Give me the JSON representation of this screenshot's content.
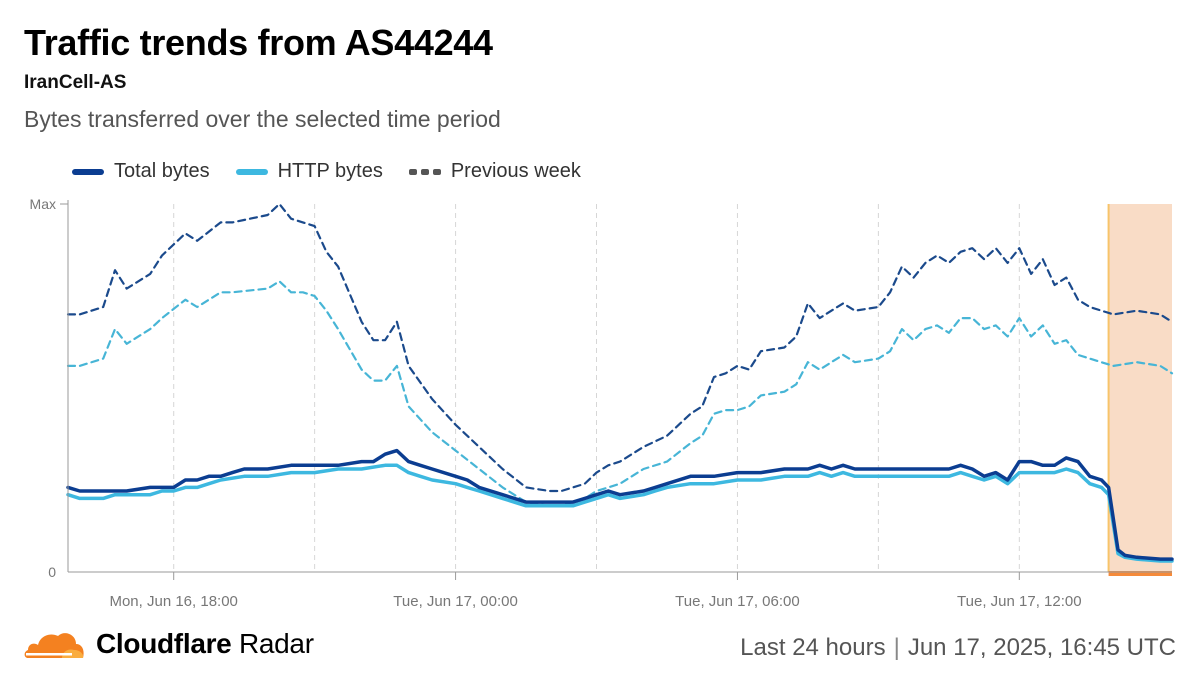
{
  "header": {
    "title": "Traffic trends from AS44244",
    "subtitle": "IranCell-AS",
    "description": "Bytes transferred over the selected time period"
  },
  "legend": {
    "total": "Total bytes",
    "http": "HTTP bytes",
    "previous": "Previous week"
  },
  "colors": {
    "total": "#0b3d91",
    "http": "#3db8e0",
    "previous_total": "#1b4a8c",
    "previous_http": "#47b5d6",
    "highlight_fill": "#f9dcc6",
    "highlight_border": "#f7c46a",
    "highlight_bar": "#f58a3a",
    "grid": "#d6d6d6"
  },
  "footer": {
    "brand_bold": "Cloudflare",
    "brand_regular": "Radar",
    "period": "Last 24 hours",
    "timestamp": "Jun 17, 2025, 16:45 UTC"
  },
  "chart_data": {
    "type": "line",
    "y_unit": "fraction of max",
    "ylim": [
      0,
      1
    ],
    "y_tick_labels": [
      "0",
      "Max"
    ],
    "x_range_hours": [
      -2.25,
      21.25
    ],
    "x_ticks": [
      {
        "hour": 0,
        "label": "Mon, Jun 16, 18:00"
      },
      {
        "hour": 6,
        "label": "Tue, Jun 17, 00:00"
      },
      {
        "hour": 12,
        "label": "Tue, Jun 17, 06:00"
      },
      {
        "hour": 18,
        "label": "Tue, Jun 17, 12:00"
      }
    ],
    "highlight_range_hours": [
      19.9,
      21.25
    ],
    "grid": true,
    "legend_position": "top-left",
    "series": [
      {
        "key": "previous_total",
        "values": [
          [
            -2.25,
            0.7
          ],
          [
            -2,
            0.7
          ],
          [
            -1.5,
            0.72
          ],
          [
            -1.25,
            0.82
          ],
          [
            -1,
            0.77
          ],
          [
            -0.5,
            0.81
          ],
          [
            -0.25,
            0.86
          ],
          [
            0.25,
            0.92
          ],
          [
            0.5,
            0.9
          ],
          [
            1,
            0.95
          ],
          [
            1.25,
            0.95
          ],
          [
            2,
            0.97
          ],
          [
            2.25,
            1.0
          ],
          [
            2.5,
            0.96
          ],
          [
            2.75,
            0.95
          ],
          [
            3,
            0.94
          ],
          [
            3.25,
            0.87
          ],
          [
            3.5,
            0.83
          ],
          [
            4,
            0.68
          ],
          [
            4.25,
            0.63
          ],
          [
            4.5,
            0.63
          ],
          [
            4.75,
            0.68
          ],
          [
            5,
            0.56
          ],
          [
            5.5,
            0.47
          ],
          [
            6,
            0.4
          ],
          [
            6.5,
            0.34
          ],
          [
            7,
            0.28
          ],
          [
            7.5,
            0.23
          ],
          [
            8,
            0.22
          ],
          [
            8.25,
            0.22
          ],
          [
            8.5,
            0.23
          ],
          [
            8.75,
            0.24
          ],
          [
            9,
            0.27
          ],
          [
            9.25,
            0.29
          ],
          [
            9.5,
            0.3
          ],
          [
            10,
            0.34
          ],
          [
            10.5,
            0.37
          ],
          [
            11,
            0.43
          ],
          [
            11.25,
            0.45
          ],
          [
            11.5,
            0.53
          ],
          [
            11.75,
            0.54
          ],
          [
            12,
            0.56
          ],
          [
            12.25,
            0.55
          ],
          [
            12.5,
            0.6
          ],
          [
            13,
            0.61
          ],
          [
            13.25,
            0.64
          ],
          [
            13.5,
            0.73
          ],
          [
            13.75,
            0.69
          ],
          [
            14,
            0.71
          ],
          [
            14.25,
            0.73
          ],
          [
            14.5,
            0.71
          ],
          [
            15,
            0.72
          ],
          [
            15.25,
            0.76
          ],
          [
            15.5,
            0.83
          ],
          [
            15.75,
            0.8
          ],
          [
            16,
            0.84
          ],
          [
            16.25,
            0.86
          ],
          [
            16.5,
            0.84
          ],
          [
            16.75,
            0.87
          ],
          [
            17,
            0.88
          ],
          [
            17.25,
            0.85
          ],
          [
            17.5,
            0.88
          ],
          [
            17.75,
            0.84
          ],
          [
            18,
            0.88
          ],
          [
            18.25,
            0.81
          ],
          [
            18.5,
            0.85
          ],
          [
            18.75,
            0.78
          ],
          [
            19,
            0.8
          ],
          [
            19.25,
            0.74
          ],
          [
            19.5,
            0.72
          ],
          [
            20,
            0.7
          ],
          [
            20.5,
            0.71
          ],
          [
            21,
            0.7
          ],
          [
            21.25,
            0.68
          ]
        ]
      },
      {
        "key": "previous_http",
        "values": [
          [
            -2.25,
            0.56
          ],
          [
            -2,
            0.56
          ],
          [
            -1.5,
            0.58
          ],
          [
            -1.25,
            0.66
          ],
          [
            -1,
            0.62
          ],
          [
            -0.5,
            0.66
          ],
          [
            -0.25,
            0.69
          ],
          [
            0.25,
            0.74
          ],
          [
            0.5,
            0.72
          ],
          [
            1,
            0.76
          ],
          [
            1.25,
            0.76
          ],
          [
            2,
            0.77
          ],
          [
            2.25,
            0.79
          ],
          [
            2.5,
            0.76
          ],
          [
            2.75,
            0.76
          ],
          [
            3,
            0.75
          ],
          [
            3.25,
            0.71
          ],
          [
            3.5,
            0.66
          ],
          [
            4,
            0.55
          ],
          [
            4.25,
            0.52
          ],
          [
            4.5,
            0.52
          ],
          [
            4.75,
            0.56
          ],
          [
            5,
            0.45
          ],
          [
            5.5,
            0.38
          ],
          [
            6,
            0.33
          ],
          [
            6.5,
            0.28
          ],
          [
            7,
            0.23
          ],
          [
            7.5,
            0.19
          ],
          [
            8,
            0.18
          ],
          [
            8.25,
            0.18
          ],
          [
            8.5,
            0.19
          ],
          [
            8.75,
            0.2
          ],
          [
            9,
            0.22
          ],
          [
            9.25,
            0.23
          ],
          [
            9.5,
            0.24
          ],
          [
            10,
            0.28
          ],
          [
            10.5,
            0.3
          ],
          [
            11,
            0.35
          ],
          [
            11.25,
            0.37
          ],
          [
            11.5,
            0.43
          ],
          [
            11.75,
            0.44
          ],
          [
            12,
            0.44
          ],
          [
            12.25,
            0.45
          ],
          [
            12.5,
            0.48
          ],
          [
            13,
            0.49
          ],
          [
            13.25,
            0.51
          ],
          [
            13.5,
            0.57
          ],
          [
            13.75,
            0.55
          ],
          [
            14,
            0.57
          ],
          [
            14.25,
            0.59
          ],
          [
            14.5,
            0.57
          ],
          [
            15,
            0.58
          ],
          [
            15.25,
            0.6
          ],
          [
            15.5,
            0.66
          ],
          [
            15.75,
            0.63
          ],
          [
            16,
            0.66
          ],
          [
            16.25,
            0.67
          ],
          [
            16.5,
            0.65
          ],
          [
            16.75,
            0.69
          ],
          [
            17,
            0.69
          ],
          [
            17.25,
            0.66
          ],
          [
            17.5,
            0.67
          ],
          [
            17.75,
            0.64
          ],
          [
            18,
            0.69
          ],
          [
            18.25,
            0.64
          ],
          [
            18.5,
            0.67
          ],
          [
            18.75,
            0.62
          ],
          [
            19,
            0.63
          ],
          [
            19.25,
            0.59
          ],
          [
            19.5,
            0.58
          ],
          [
            20,
            0.56
          ],
          [
            20.5,
            0.57
          ],
          [
            21,
            0.56
          ],
          [
            21.25,
            0.54
          ]
        ]
      },
      {
        "key": "http",
        "values": [
          [
            -2.25,
            0.21
          ],
          [
            -2,
            0.2
          ],
          [
            -1.75,
            0.2
          ],
          [
            -1.5,
            0.2
          ],
          [
            -1.25,
            0.21
          ],
          [
            -1,
            0.21
          ],
          [
            -0.5,
            0.21
          ],
          [
            -0.25,
            0.22
          ],
          [
            0,
            0.22
          ],
          [
            0.25,
            0.23
          ],
          [
            0.5,
            0.23
          ],
          [
            0.75,
            0.24
          ],
          [
            1,
            0.25
          ],
          [
            1.5,
            0.26
          ],
          [
            1.75,
            0.26
          ],
          [
            2,
            0.26
          ],
          [
            2.5,
            0.27
          ],
          [
            3,
            0.27
          ],
          [
            3.5,
            0.28
          ],
          [
            4,
            0.28
          ],
          [
            4.5,
            0.29
          ],
          [
            4.75,
            0.29
          ],
          [
            5,
            0.27
          ],
          [
            5.25,
            0.26
          ],
          [
            5.5,
            0.25
          ],
          [
            6,
            0.24
          ],
          [
            6.25,
            0.23
          ],
          [
            6.5,
            0.22
          ],
          [
            7,
            0.2
          ],
          [
            7.5,
            0.18
          ],
          [
            8,
            0.18
          ],
          [
            8.25,
            0.18
          ],
          [
            8.5,
            0.18
          ],
          [
            8.75,
            0.19
          ],
          [
            9,
            0.2
          ],
          [
            9.25,
            0.21
          ],
          [
            9.5,
            0.2
          ],
          [
            10,
            0.21
          ],
          [
            10.25,
            0.22
          ],
          [
            10.5,
            0.23
          ],
          [
            11,
            0.24
          ],
          [
            11.5,
            0.24
          ],
          [
            12,
            0.25
          ],
          [
            12.5,
            0.25
          ],
          [
            13,
            0.26
          ],
          [
            13.5,
            0.26
          ],
          [
            13.75,
            0.27
          ],
          [
            14,
            0.26
          ],
          [
            14.25,
            0.27
          ],
          [
            14.5,
            0.26
          ],
          [
            15,
            0.26
          ],
          [
            15.5,
            0.26
          ],
          [
            16,
            0.26
          ],
          [
            16.25,
            0.26
          ],
          [
            16.5,
            0.26
          ],
          [
            16.75,
            0.27
          ],
          [
            17,
            0.26
          ],
          [
            17.25,
            0.25
          ],
          [
            17.5,
            0.26
          ],
          [
            17.75,
            0.24
          ],
          [
            18,
            0.27
          ],
          [
            18.25,
            0.27
          ],
          [
            18.5,
            0.27
          ],
          [
            18.75,
            0.27
          ],
          [
            19,
            0.28
          ],
          [
            19.25,
            0.27
          ],
          [
            19.5,
            0.24
          ],
          [
            19.75,
            0.23
          ],
          [
            19.9,
            0.21
          ],
          [
            20.1,
            0.05
          ],
          [
            20.25,
            0.04
          ],
          [
            20.5,
            0.035
          ],
          [
            21,
            0.03
          ],
          [
            21.25,
            0.03
          ]
        ]
      },
      {
        "key": "total",
        "values": [
          [
            -2.25,
            0.23
          ],
          [
            -2,
            0.22
          ],
          [
            -1.75,
            0.22
          ],
          [
            -1.5,
            0.22
          ],
          [
            -1.25,
            0.22
          ],
          [
            -1,
            0.22
          ],
          [
            -0.5,
            0.23
          ],
          [
            -0.25,
            0.23
          ],
          [
            0,
            0.23
          ],
          [
            0.25,
            0.25
          ],
          [
            0.5,
            0.25
          ],
          [
            0.75,
            0.26
          ],
          [
            1,
            0.26
          ],
          [
            1.25,
            0.27
          ],
          [
            1.5,
            0.28
          ],
          [
            1.75,
            0.28
          ],
          [
            2,
            0.28
          ],
          [
            2.5,
            0.29
          ],
          [
            3,
            0.29
          ],
          [
            3.5,
            0.29
          ],
          [
            4,
            0.3
          ],
          [
            4.25,
            0.3
          ],
          [
            4.5,
            0.32
          ],
          [
            4.75,
            0.33
          ],
          [
            5,
            0.3
          ],
          [
            5.25,
            0.29
          ],
          [
            5.5,
            0.28
          ],
          [
            6,
            0.26
          ],
          [
            6.25,
            0.25
          ],
          [
            6.5,
            0.23
          ],
          [
            7,
            0.21
          ],
          [
            7.5,
            0.19
          ],
          [
            8,
            0.19
          ],
          [
            8.25,
            0.19
          ],
          [
            8.5,
            0.19
          ],
          [
            8.75,
            0.2
          ],
          [
            9,
            0.21
          ],
          [
            9.25,
            0.22
          ],
          [
            9.5,
            0.21
          ],
          [
            10,
            0.22
          ],
          [
            10.25,
            0.23
          ],
          [
            10.5,
            0.24
          ],
          [
            11,
            0.26
          ],
          [
            11.5,
            0.26
          ],
          [
            12,
            0.27
          ],
          [
            12.5,
            0.27
          ],
          [
            13,
            0.28
          ],
          [
            13.5,
            0.28
          ],
          [
            13.75,
            0.29
          ],
          [
            14,
            0.28
          ],
          [
            14.25,
            0.29
          ],
          [
            14.5,
            0.28
          ],
          [
            15,
            0.28
          ],
          [
            15.5,
            0.28
          ],
          [
            16,
            0.28
          ],
          [
            16.25,
            0.28
          ],
          [
            16.5,
            0.28
          ],
          [
            16.75,
            0.29
          ],
          [
            17,
            0.28
          ],
          [
            17.25,
            0.26
          ],
          [
            17.5,
            0.27
          ],
          [
            17.75,
            0.25
          ],
          [
            18,
            0.3
          ],
          [
            18.25,
            0.3
          ],
          [
            18.5,
            0.29
          ],
          [
            18.75,
            0.29
          ],
          [
            19,
            0.31
          ],
          [
            19.25,
            0.3
          ],
          [
            19.5,
            0.26
          ],
          [
            19.75,
            0.25
          ],
          [
            19.9,
            0.23
          ],
          [
            20.1,
            0.06
          ],
          [
            20.25,
            0.045
          ],
          [
            20.5,
            0.04
          ],
          [
            21,
            0.035
          ],
          [
            21.25,
            0.035
          ]
        ]
      }
    ]
  }
}
